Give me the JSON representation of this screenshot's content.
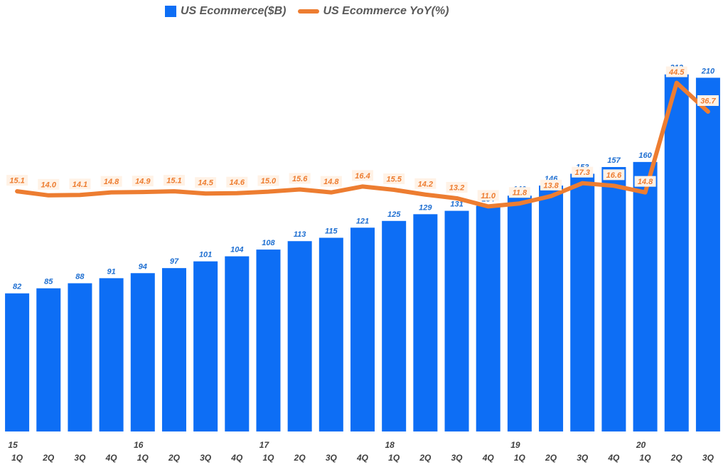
{
  "chart_data": {
    "type": "bar+line",
    "title": "",
    "xlabel": "",
    "ylabel": "",
    "legend_position": "top",
    "grid": false,
    "categories": [
      {
        "quarter": "1Q",
        "year": "15"
      },
      {
        "quarter": "2Q",
        "year": ""
      },
      {
        "quarter": "3Q",
        "year": ""
      },
      {
        "quarter": "4Q",
        "year": ""
      },
      {
        "quarter": "1Q",
        "year": "16"
      },
      {
        "quarter": "2Q",
        "year": ""
      },
      {
        "quarter": "3Q",
        "year": ""
      },
      {
        "quarter": "4Q",
        "year": ""
      },
      {
        "quarter": "1Q",
        "year": "17"
      },
      {
        "quarter": "2Q",
        "year": ""
      },
      {
        "quarter": "3Q",
        "year": ""
      },
      {
        "quarter": "4Q",
        "year": ""
      },
      {
        "quarter": "1Q",
        "year": "18"
      },
      {
        "quarter": "2Q",
        "year": ""
      },
      {
        "quarter": "3Q",
        "year": ""
      },
      {
        "quarter": "4Q",
        "year": ""
      },
      {
        "quarter": "1Q",
        "year": "19"
      },
      {
        "quarter": "2Q",
        "year": ""
      },
      {
        "quarter": "3Q",
        "year": ""
      },
      {
        "quarter": "4Q",
        "year": ""
      },
      {
        "quarter": "1Q",
        "year": "20"
      },
      {
        "quarter": "2Q",
        "year": ""
      },
      {
        "quarter": "3Q",
        "year": ""
      }
    ],
    "series": [
      {
        "name": "US Ecommerce($B)",
        "type": "bar",
        "color": "#0d6ef5",
        "values": [
          82,
          85,
          88,
          91,
          94,
          97,
          101,
          104,
          108,
          113,
          115,
          121,
          125,
          129,
          131,
          134,
          140,
          146,
          153,
          157,
          160,
          212,
          210
        ],
        "labels": [
          "82",
          "85",
          "88",
          "91",
          "94",
          "97",
          "101",
          "104",
          "108",
          "113",
          "115",
          "121",
          "125",
          "129",
          "131",
          "134",
          "140",
          "146",
          "153",
          "157",
          "160",
          "212",
          "210"
        ],
        "ylim": [
          0,
          230
        ]
      },
      {
        "name": "US Ecommerce YoY(%)",
        "type": "line",
        "color": "#ed7d31",
        "values": [
          15.1,
          14.0,
          14.1,
          14.8,
          14.9,
          15.1,
          14.5,
          14.6,
          15.0,
          15.6,
          14.8,
          16.4,
          15.5,
          14.2,
          13.2,
          11.0,
          11.8,
          13.8,
          17.3,
          16.6,
          14.8,
          44.5,
          36.7
        ],
        "labels": [
          "15.1",
          "14.0",
          "14.1",
          "14.8",
          "14.9",
          "15.1",
          "14.5",
          "14.6",
          "15.0",
          "15.6",
          "14.8",
          "16.4",
          "15.5",
          "14.2",
          "13.2",
          "11.0",
          "11.8",
          "13.8",
          "17.3",
          "16.6",
          "14.8",
          "44.5",
          "36.7"
        ],
        "ylim": [
          -50,
          55
        ]
      }
    ]
  }
}
